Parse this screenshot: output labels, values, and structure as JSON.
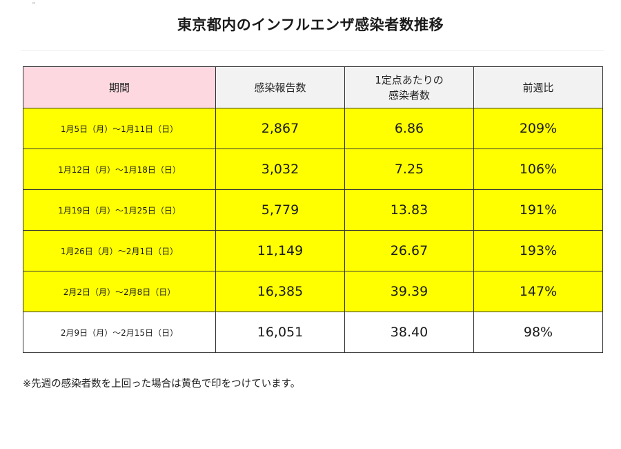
{
  "title": "東京都内のインフルエンザ感染者数推移",
  "table": {
    "headers": {
      "period": "期間",
      "reports": "感染報告数",
      "per_site_line1": "1定点あたりの",
      "per_site_line2": "感染者数",
      "wow": "前週比"
    },
    "rows": [
      {
        "period": "1月5日（月）～1月11日（日）",
        "reports": "2,867",
        "per_site": "6.86",
        "wow": "209%",
        "highlight": true
      },
      {
        "period": "1月12日（月）～1月18日（日）",
        "reports": "3,032",
        "per_site": "7.25",
        "wow": "106%",
        "highlight": true
      },
      {
        "period": "1月19日（月）～1月25日（日）",
        "reports": "5,779",
        "per_site": "13.83",
        "wow": "191%",
        "highlight": true
      },
      {
        "period": "1月26日（月）～2月1日（日）",
        "reports": "11,149",
        "per_site": "26.67",
        "wow": "193%",
        "highlight": true
      },
      {
        "period": "2月2日（月）～2月8日（日）",
        "reports": "16,385",
        "per_site": "39.39",
        "wow": "147%",
        "highlight": true
      },
      {
        "period": "2月9日（月）～2月15日（日）",
        "reports": "16,051",
        "per_site": "38.40",
        "wow": "98%",
        "highlight": false
      }
    ]
  },
  "note": "※先週の感染者数を上回った場合は黄色で印をつけています。",
  "colors": {
    "highlight": "#ffff00",
    "header_period": "#fdd8e0",
    "header_other": "#f2f2f2",
    "border": "#333333"
  }
}
